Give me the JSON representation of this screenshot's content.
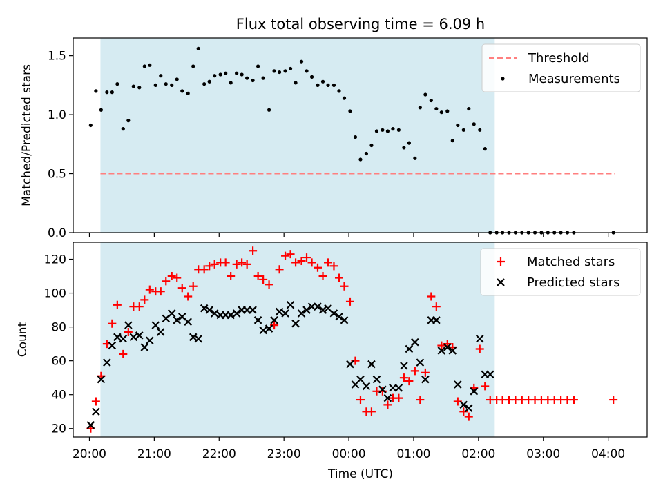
{
  "figure": {
    "title": "Flux total observing time = 6.09 h",
    "xlabel": "Time (UTC)"
  },
  "chart_data": [
    {
      "type": "scatter",
      "panel": "top",
      "title": "Flux total observing time = 6.09 h",
      "xlabel": "",
      "ylabel": "Matched/Predicted stars",
      "x_unit": "hours since 20:00 UTC",
      "xlim": [
        -0.25,
        8.6
      ],
      "ylim": [
        0,
        1.65
      ],
      "yticks": [
        0.0,
        0.5,
        1.0,
        1.5
      ],
      "ytick_labels": [
        "0.0",
        "0.5",
        "1.0",
        "1.5"
      ],
      "grid": false,
      "legend_position": "top-right",
      "shaded_span": {
        "x0": 0.17,
        "x1": 6.25,
        "color": "#add8e6"
      },
      "threshold": {
        "name": "Threshold",
        "value": 0.5,
        "x0": 0.17,
        "x1": 8.1,
        "color": "#ff7f7f",
        "style": "dashed"
      },
      "series": [
        {
          "name": "Measurements",
          "marker": "dot",
          "color": "#000000",
          "x": [
            0.02,
            0.1,
            0.18,
            0.27,
            0.35,
            0.43,
            0.52,
            0.6,
            0.68,
            0.77,
            0.85,
            0.93,
            1.02,
            1.1,
            1.18,
            1.27,
            1.35,
            1.43,
            1.52,
            1.6,
            1.68,
            1.77,
            1.85,
            1.93,
            2.02,
            2.1,
            2.18,
            2.27,
            2.35,
            2.43,
            2.52,
            2.6,
            2.68,
            2.77,
            2.85,
            2.93,
            3.02,
            3.1,
            3.18,
            3.27,
            3.35,
            3.43,
            3.52,
            3.6,
            3.68,
            3.77,
            3.85,
            3.93,
            4.02,
            4.1,
            4.18,
            4.27,
            4.35,
            4.43,
            4.52,
            4.6,
            4.68,
            4.77,
            4.85,
            4.93,
            5.02,
            5.1,
            5.18,
            5.27,
            5.35,
            5.43,
            5.52,
            5.6,
            5.68,
            5.77,
            5.85,
            5.93,
            6.02,
            6.1,
            6.18,
            6.28,
            6.37,
            6.47,
            6.57,
            6.67,
            6.77,
            6.87,
            6.97,
            7.07,
            7.17,
            7.27,
            7.37,
            7.47,
            8.08
          ],
          "y": [
            0.91,
            1.2,
            1.04,
            1.19,
            1.19,
            1.26,
            0.88,
            0.95,
            1.24,
            1.23,
            1.41,
            1.42,
            1.25,
            1.33,
            1.26,
            1.25,
            1.3,
            1.2,
            1.18,
            1.41,
            1.56,
            1.26,
            1.28,
            1.33,
            1.34,
            1.35,
            1.27,
            1.35,
            1.34,
            1.31,
            1.29,
            1.41,
            1.31,
            1.04,
            1.37,
            1.36,
            1.37,
            1.39,
            1.27,
            1.45,
            1.37,
            1.32,
            1.25,
            1.28,
            1.25,
            1.25,
            1.2,
            1.14,
            1.03,
            0.81,
            0.62,
            0.67,
            0.74,
            0.86,
            0.87,
            0.86,
            0.88,
            0.87,
            0.72,
            0.76,
            0.63,
            1.06,
            1.17,
            1.12,
            1.05,
            1.02,
            1.03,
            0.78,
            0.91,
            0.87,
            1.05,
            0.92,
            0.87,
            0.71,
            0.0,
            0.0,
            0.0,
            0.0,
            0.0,
            0.0,
            0.0,
            0.0,
            0.0,
            0.0,
            0.0,
            0.0,
            0.0,
            0.0,
            0.0
          ]
        }
      ]
    },
    {
      "type": "scatter",
      "panel": "bottom",
      "xlabel": "Time (UTC)",
      "ylabel": "Count",
      "x_unit": "hours since 20:00 UTC",
      "xlim": [
        -0.25,
        8.6
      ],
      "ylim": [
        15,
        130
      ],
      "xticks": [
        0,
        1,
        2,
        3,
        4,
        5,
        6,
        7,
        8
      ],
      "xtick_labels": [
        "20:00",
        "21:00",
        "22:00",
        "23:00",
        "00:00",
        "01:00",
        "02:00",
        "03:00",
        "04:00"
      ],
      "yticks": [
        20,
        40,
        60,
        80,
        100,
        120
      ],
      "ytick_labels": [
        "20",
        "40",
        "60",
        "80",
        "100",
        "120"
      ],
      "grid": false,
      "legend_position": "top-right",
      "shaded_span": {
        "x0": 0.17,
        "x1": 6.25,
        "color": "#add8e6"
      },
      "series": [
        {
          "name": "Matched stars",
          "marker": "plus",
          "color": "#ff0000",
          "x": [
            0.02,
            0.1,
            0.18,
            0.27,
            0.35,
            0.43,
            0.52,
            0.6,
            0.68,
            0.77,
            0.85,
            0.93,
            1.02,
            1.1,
            1.18,
            1.27,
            1.35,
            1.43,
            1.52,
            1.6,
            1.68,
            1.77,
            1.85,
            1.93,
            2.02,
            2.1,
            2.18,
            2.27,
            2.35,
            2.43,
            2.52,
            2.6,
            2.68,
            2.77,
            2.85,
            2.93,
            3.02,
            3.1,
            3.18,
            3.27,
            3.35,
            3.43,
            3.52,
            3.6,
            3.68,
            3.77,
            3.85,
            3.93,
            4.02,
            4.1,
            4.18,
            4.27,
            4.35,
            4.43,
            4.52,
            4.6,
            4.68,
            4.77,
            4.85,
            4.93,
            5.02,
            5.1,
            5.18,
            5.27,
            5.35,
            5.43,
            5.52,
            5.6,
            5.68,
            5.77,
            5.85,
            5.93,
            6.02,
            6.1,
            6.18,
            6.28,
            6.37,
            6.47,
            6.57,
            6.67,
            6.77,
            6.87,
            6.97,
            7.07,
            7.17,
            7.27,
            7.37,
            7.47,
            8.08
          ],
          "y": [
            20,
            36,
            51,
            70,
            82,
            93,
            64,
            77,
            92,
            92,
            96,
            102,
            101,
            101,
            107,
            110,
            109,
            103,
            98,
            104,
            114,
            114,
            116,
            117,
            118,
            118,
            110,
            117,
            118,
            117,
            125,
            110,
            108,
            105,
            81,
            114,
            122,
            123,
            118,
            119,
            121,
            118,
            115,
            110,
            118,
            116,
            109,
            104,
            95,
            60,
            37,
            30,
            30,
            42,
            42,
            34,
            38,
            38,
            50,
            48,
            54,
            37,
            53,
            98,
            92,
            69,
            70,
            68,
            36,
            30,
            27,
            44,
            67,
            45,
            37,
            37,
            37,
            37,
            37,
            37,
            37,
            37,
            37,
            37,
            37,
            37,
            37,
            37,
            37
          ]
        },
        {
          "name": "Predicted stars",
          "marker": "x",
          "color": "#000000",
          "x": [
            0.02,
            0.1,
            0.18,
            0.27,
            0.35,
            0.43,
            0.52,
            0.6,
            0.68,
            0.77,
            0.85,
            0.93,
            1.02,
            1.1,
            1.18,
            1.27,
            1.35,
            1.43,
            1.52,
            1.6,
            1.68,
            1.77,
            1.85,
            1.93,
            2.02,
            2.1,
            2.18,
            2.27,
            2.35,
            2.43,
            2.52,
            2.6,
            2.68,
            2.77,
            2.85,
            2.93,
            3.02,
            3.1,
            3.18,
            3.27,
            3.35,
            3.43,
            3.52,
            3.6,
            3.68,
            3.77,
            3.85,
            3.93,
            4.02,
            4.1,
            4.18,
            4.27,
            4.35,
            4.43,
            4.52,
            4.6,
            4.68,
            4.77,
            4.85,
            4.93,
            5.02,
            5.1,
            5.18,
            5.27,
            5.35,
            5.43,
            5.52,
            5.6,
            5.68,
            5.77,
            5.85,
            5.93,
            6.02,
            6.1,
            6.18
          ],
          "y": [
            22,
            30,
            49,
            59,
            69,
            74,
            73,
            81,
            74,
            75,
            68,
            72,
            81,
            77,
            85,
            88,
            84,
            86,
            83,
            74,
            73,
            91,
            90,
            88,
            87,
            87,
            87,
            88,
            90,
            90,
            90,
            84,
            78,
            79,
            84,
            89,
            88,
            93,
            82,
            88,
            90,
            92,
            92,
            90,
            91,
            88,
            86,
            84,
            58,
            46,
            49,
            45,
            58,
            49,
            43,
            38,
            44,
            44,
            57,
            67,
            71,
            59,
            49,
            84,
            84,
            66,
            68,
            66,
            46,
            34,
            32,
            42,
            73,
            52,
            52
          ]
        }
      ]
    }
  ]
}
